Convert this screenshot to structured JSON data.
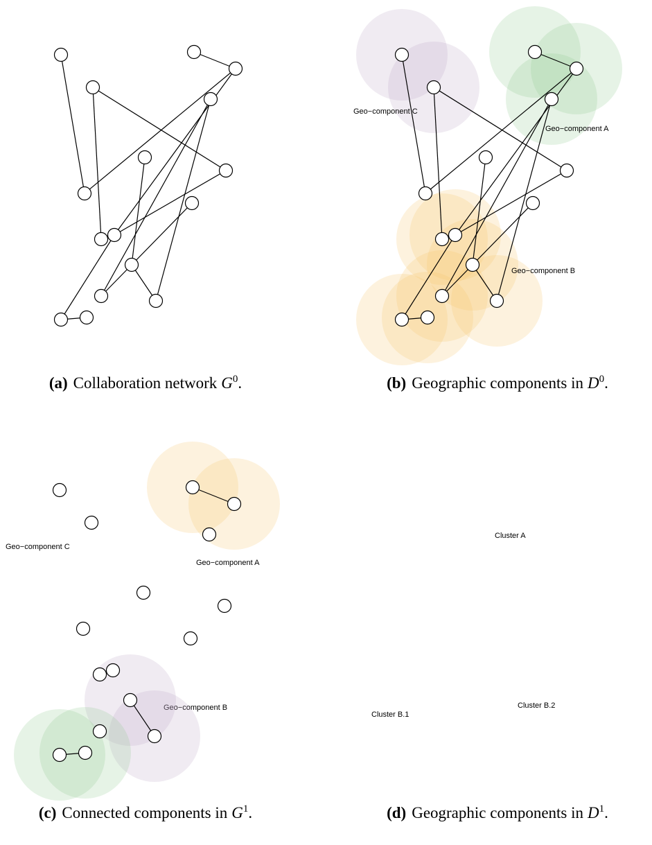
{
  "panels": [
    {
      "caption": {
        "label": "(a)",
        "text": "Collaboration network",
        "symbol": "G",
        "superscript": "0",
        "end": "."
      },
      "annotations": []
    },
    {
      "caption": {
        "label": "(b)",
        "text": "Geographic components in",
        "symbol": "D",
        "superscript": "0",
        "end": "."
      },
      "annotations": [
        "Geo−component C",
        "Geo−component A",
        "Geo−component B"
      ]
    },
    {
      "caption": {
        "label": "(c)",
        "text": "Connected components in",
        "symbol": "G",
        "superscript": "1",
        "end": "."
      },
      "annotations": [
        "Geo−component C",
        "Geo−component A",
        "Geo−component B"
      ]
    },
    {
      "caption": {
        "label": "(d)",
        "text": "Geographic components in",
        "symbol": "D",
        "superscript": "1",
        "end": "."
      },
      "annotations": [
        "Cluster A",
        "Cluster B.2",
        "Cluster B.1"
      ]
    }
  ]
}
